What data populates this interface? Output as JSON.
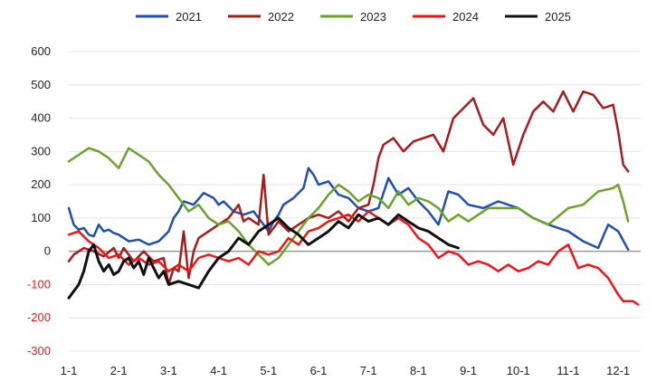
{
  "chart_data": {
    "type": "line",
    "title": "",
    "xlabel": "",
    "ylabel": "",
    "ylim": [
      -300,
      600
    ],
    "yticks": [
      600,
      500,
      400,
      300,
      200,
      100,
      0,
      -100,
      -200,
      -300
    ],
    "negative_tick_color": "#e02020",
    "positive_tick_color": "#222222",
    "grid": true,
    "legend_position": "top",
    "x_tick_labels": [
      "1-1",
      "2-1",
      "3-1",
      "4-1",
      "5-1",
      "6-1",
      "7-1",
      "8-1",
      "9-1",
      "10-1",
      "11-1",
      "12-1"
    ],
    "series": [
      {
        "name": "2021",
        "color": "#1f4fb0",
        "points": [
          [
            1.0,
            130
          ],
          [
            1.1,
            80
          ],
          [
            1.2,
            65
          ],
          [
            1.3,
            70
          ],
          [
            1.4,
            50
          ],
          [
            1.5,
            45
          ],
          [
            1.6,
            80
          ],
          [
            1.7,
            60
          ],
          [
            1.8,
            65
          ],
          [
            1.9,
            55
          ],
          [
            2.0,
            50
          ],
          [
            2.2,
            30
          ],
          [
            2.4,
            35
          ],
          [
            2.6,
            20
          ],
          [
            2.8,
            30
          ],
          [
            3.0,
            60
          ],
          [
            3.1,
            100
          ],
          [
            3.2,
            120
          ],
          [
            3.3,
            150
          ],
          [
            3.5,
            140
          ],
          [
            3.7,
            175
          ],
          [
            3.9,
            160
          ],
          [
            4.0,
            140
          ],
          [
            4.1,
            150
          ],
          [
            4.3,
            120
          ],
          [
            4.5,
            110
          ],
          [
            4.7,
            120
          ],
          [
            4.9,
            80
          ],
          [
            5.0,
            60
          ],
          [
            5.1,
            90
          ],
          [
            5.2,
            110
          ],
          [
            5.3,
            140
          ],
          [
            5.5,
            160
          ],
          [
            5.7,
            190
          ],
          [
            5.8,
            250
          ],
          [
            5.9,
            230
          ],
          [
            6.0,
            200
          ],
          [
            6.2,
            210
          ],
          [
            6.4,
            170
          ],
          [
            6.6,
            160
          ],
          [
            6.8,
            130
          ],
          [
            7.0,
            120
          ],
          [
            7.2,
            130
          ],
          [
            7.4,
            220
          ],
          [
            7.6,
            170
          ],
          [
            7.8,
            190
          ],
          [
            8.0,
            150
          ],
          [
            8.2,
            120
          ],
          [
            8.4,
            80
          ],
          [
            8.6,
            180
          ],
          [
            8.8,
            170
          ],
          [
            9.0,
            140
          ],
          [
            9.3,
            130
          ],
          [
            9.6,
            150
          ],
          [
            10.0,
            130
          ],
          [
            10.3,
            100
          ],
          [
            10.6,
            80
          ],
          [
            11.0,
            60
          ],
          [
            11.3,
            30
          ],
          [
            11.6,
            10
          ],
          [
            11.8,
            80
          ],
          [
            12.0,
            60
          ],
          [
            12.2,
            5
          ]
        ]
      },
      {
        "name": "2022",
        "color": "#a81b1b",
        "points": [
          [
            1.0,
            -30
          ],
          [
            1.1,
            -10
          ],
          [
            1.3,
            10
          ],
          [
            1.5,
            0
          ],
          [
            1.7,
            -15
          ],
          [
            1.9,
            10
          ],
          [
            2.0,
            -20
          ],
          [
            2.1,
            10
          ],
          [
            2.3,
            -30
          ],
          [
            2.5,
            0
          ],
          [
            2.7,
            -30
          ],
          [
            2.9,
            -20
          ],
          [
            3.0,
            -100
          ],
          [
            3.1,
            -50
          ],
          [
            3.2,
            -60
          ],
          [
            3.3,
            60
          ],
          [
            3.4,
            -80
          ],
          [
            3.5,
            0
          ],
          [
            3.6,
            40
          ],
          [
            3.8,
            60
          ],
          [
            4.0,
            80
          ],
          [
            4.2,
            100
          ],
          [
            4.4,
            140
          ],
          [
            4.5,
            90
          ],
          [
            4.6,
            100
          ],
          [
            4.8,
            80
          ],
          [
            4.9,
            230
          ],
          [
            5.0,
            50
          ],
          [
            5.2,
            90
          ],
          [
            5.4,
            60
          ],
          [
            5.6,
            80
          ],
          [
            5.8,
            100
          ],
          [
            6.0,
            110
          ],
          [
            6.2,
            100
          ],
          [
            6.4,
            120
          ],
          [
            6.6,
            90
          ],
          [
            6.8,
            130
          ],
          [
            7.0,
            140
          ],
          [
            7.1,
            200
          ],
          [
            7.2,
            280
          ],
          [
            7.3,
            320
          ],
          [
            7.5,
            340
          ],
          [
            7.7,
            300
          ],
          [
            7.9,
            330
          ],
          [
            8.1,
            340
          ],
          [
            8.3,
            350
          ],
          [
            8.5,
            300
          ],
          [
            8.7,
            400
          ],
          [
            8.9,
            430
          ],
          [
            9.1,
            460
          ],
          [
            9.3,
            380
          ],
          [
            9.5,
            350
          ],
          [
            9.7,
            400
          ],
          [
            9.9,
            260
          ],
          [
            10.1,
            350
          ],
          [
            10.3,
            420
          ],
          [
            10.5,
            450
          ],
          [
            10.7,
            420
          ],
          [
            10.9,
            480
          ],
          [
            11.1,
            420
          ],
          [
            11.3,
            480
          ],
          [
            11.5,
            470
          ],
          [
            11.7,
            430
          ],
          [
            11.9,
            440
          ],
          [
            12.0,
            360
          ],
          [
            12.1,
            260
          ],
          [
            12.2,
            240
          ]
        ]
      },
      {
        "name": "2023",
        "color": "#6aa329",
        "points": [
          [
            1.0,
            270
          ],
          [
            1.2,
            290
          ],
          [
            1.4,
            310
          ],
          [
            1.6,
            300
          ],
          [
            1.8,
            280
          ],
          [
            2.0,
            250
          ],
          [
            2.2,
            310
          ],
          [
            2.4,
            290
          ],
          [
            2.6,
            270
          ],
          [
            2.8,
            230
          ],
          [
            3.0,
            200
          ],
          [
            3.2,
            160
          ],
          [
            3.4,
            120
          ],
          [
            3.6,
            140
          ],
          [
            3.8,
            100
          ],
          [
            4.0,
            80
          ],
          [
            4.2,
            90
          ],
          [
            4.4,
            60
          ],
          [
            4.6,
            20
          ],
          [
            4.8,
            -10
          ],
          [
            5.0,
            -40
          ],
          [
            5.2,
            -20
          ],
          [
            5.4,
            20
          ],
          [
            5.6,
            60
          ],
          [
            5.8,
            100
          ],
          [
            6.0,
            130
          ],
          [
            6.2,
            170
          ],
          [
            6.4,
            200
          ],
          [
            6.6,
            180
          ],
          [
            6.8,
            150
          ],
          [
            7.0,
            170
          ],
          [
            7.2,
            160
          ],
          [
            7.4,
            130
          ],
          [
            7.6,
            180
          ],
          [
            7.8,
            140
          ],
          [
            8.0,
            160
          ],
          [
            8.2,
            150
          ],
          [
            8.4,
            130
          ],
          [
            8.6,
            90
          ],
          [
            8.8,
            110
          ],
          [
            9.0,
            90
          ],
          [
            9.2,
            110
          ],
          [
            9.4,
            130
          ],
          [
            9.6,
            130
          ],
          [
            9.8,
            130
          ],
          [
            10.0,
            130
          ],
          [
            10.3,
            100
          ],
          [
            10.6,
            80
          ],
          [
            11.0,
            130
          ],
          [
            11.3,
            140
          ],
          [
            11.6,
            180
          ],
          [
            11.9,
            190
          ],
          [
            12.0,
            200
          ],
          [
            12.1,
            150
          ],
          [
            12.2,
            90
          ]
        ]
      },
      {
        "name": "2024",
        "color": "#f01515",
        "points": [
          [
            1.0,
            50
          ],
          [
            1.2,
            60
          ],
          [
            1.4,
            30
          ],
          [
            1.6,
            10
          ],
          [
            1.8,
            -20
          ],
          [
            2.0,
            -10
          ],
          [
            2.2,
            -40
          ],
          [
            2.4,
            -20
          ],
          [
            2.6,
            -40
          ],
          [
            2.8,
            -30
          ],
          [
            3.0,
            -60
          ],
          [
            3.2,
            -40
          ],
          [
            3.4,
            -60
          ],
          [
            3.6,
            -20
          ],
          [
            3.8,
            -10
          ],
          [
            4.0,
            -20
          ],
          [
            4.2,
            -30
          ],
          [
            4.4,
            -20
          ],
          [
            4.6,
            -40
          ],
          [
            4.8,
            0
          ],
          [
            5.0,
            -10
          ],
          [
            5.2,
            0
          ],
          [
            5.4,
            40
          ],
          [
            5.6,
            20
          ],
          [
            5.8,
            60
          ],
          [
            6.0,
            70
          ],
          [
            6.2,
            90
          ],
          [
            6.4,
            100
          ],
          [
            6.6,
            110
          ],
          [
            6.8,
            90
          ],
          [
            7.0,
            120
          ],
          [
            7.2,
            100
          ],
          [
            7.4,
            80
          ],
          [
            7.6,
            100
          ],
          [
            7.8,
            80
          ],
          [
            8.0,
            40
          ],
          [
            8.2,
            20
          ],
          [
            8.4,
            -20
          ],
          [
            8.6,
            0
          ],
          [
            8.8,
            -10
          ],
          [
            9.0,
            -40
          ],
          [
            9.2,
            -30
          ],
          [
            9.4,
            -40
          ],
          [
            9.6,
            -60
          ],
          [
            9.8,
            -40
          ],
          [
            10.0,
            -60
          ],
          [
            10.2,
            -50
          ],
          [
            10.4,
            -30
          ],
          [
            10.6,
            -40
          ],
          [
            10.8,
            0
          ],
          [
            11.0,
            20
          ],
          [
            11.2,
            -50
          ],
          [
            11.4,
            -40
          ],
          [
            11.6,
            -50
          ],
          [
            11.8,
            -80
          ],
          [
            12.0,
            -130
          ],
          [
            12.1,
            -150
          ],
          [
            12.3,
            -150
          ],
          [
            12.4,
            -160
          ]
        ]
      },
      {
        "name": "2025",
        "color": "#111111",
        "points": [
          [
            1.0,
            -140
          ],
          [
            1.1,
            -120
          ],
          [
            1.2,
            -100
          ],
          [
            1.3,
            -60
          ],
          [
            1.4,
            0
          ],
          [
            1.5,
            20
          ],
          [
            1.6,
            -30
          ],
          [
            1.7,
            -60
          ],
          [
            1.8,
            -40
          ],
          [
            1.9,
            -70
          ],
          [
            2.0,
            -60
          ],
          [
            2.1,
            -30
          ],
          [
            2.2,
            -20
          ],
          [
            2.3,
            -50
          ],
          [
            2.4,
            -30
          ],
          [
            2.5,
            -70
          ],
          [
            2.6,
            -20
          ],
          [
            2.7,
            -50
          ],
          [
            2.8,
            -80
          ],
          [
            2.9,
            -60
          ],
          [
            3.0,
            -100
          ],
          [
            3.2,
            -90
          ],
          [
            3.4,
            -100
          ],
          [
            3.6,
            -110
          ],
          [
            3.8,
            -60
          ],
          [
            4.0,
            -20
          ],
          [
            4.2,
            0
          ],
          [
            4.4,
            40
          ],
          [
            4.6,
            20
          ],
          [
            4.8,
            60
          ],
          [
            5.0,
            80
          ],
          [
            5.2,
            100
          ],
          [
            5.4,
            70
          ],
          [
            5.6,
            50
          ],
          [
            5.8,
            20
          ],
          [
            6.0,
            40
          ],
          [
            6.2,
            60
          ],
          [
            6.4,
            90
          ],
          [
            6.6,
            70
          ],
          [
            6.8,
            110
          ],
          [
            7.0,
            90
          ],
          [
            7.2,
            100
          ],
          [
            7.4,
            80
          ],
          [
            7.6,
            110
          ],
          [
            7.8,
            90
          ],
          [
            8.0,
            70
          ],
          [
            8.2,
            60
          ],
          [
            8.4,
            40
          ],
          [
            8.6,
            20
          ],
          [
            8.8,
            10
          ]
        ]
      }
    ]
  }
}
